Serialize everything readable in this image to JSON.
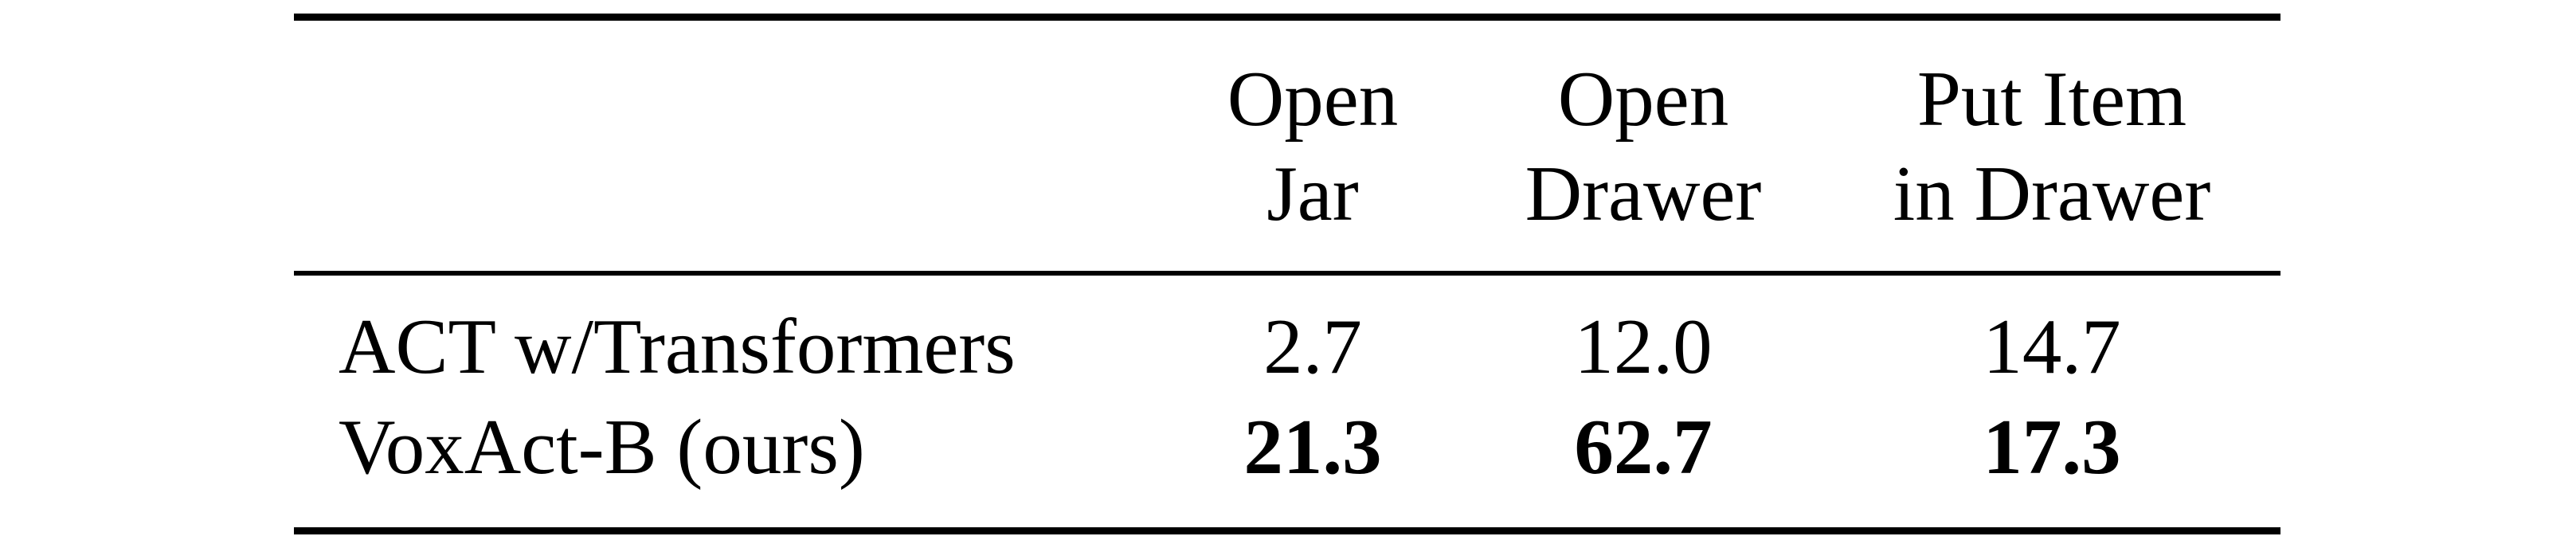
{
  "table": {
    "headers": [
      {
        "line1": "Open",
        "line2": "Jar"
      },
      {
        "line1": "Open",
        "line2": "Drawer"
      },
      {
        "line1": "Put Item",
        "line2": "in Drawer"
      }
    ],
    "rows": [
      {
        "method": "ACT w/Transformers",
        "values": [
          "2.7",
          "12.0",
          "14.7"
        ],
        "bold": [
          false,
          false,
          false
        ]
      },
      {
        "method": "VoxAct-B (ours)",
        "values": [
          "21.3",
          "62.7",
          "17.3"
        ],
        "bold": [
          true,
          true,
          true
        ]
      }
    ]
  }
}
